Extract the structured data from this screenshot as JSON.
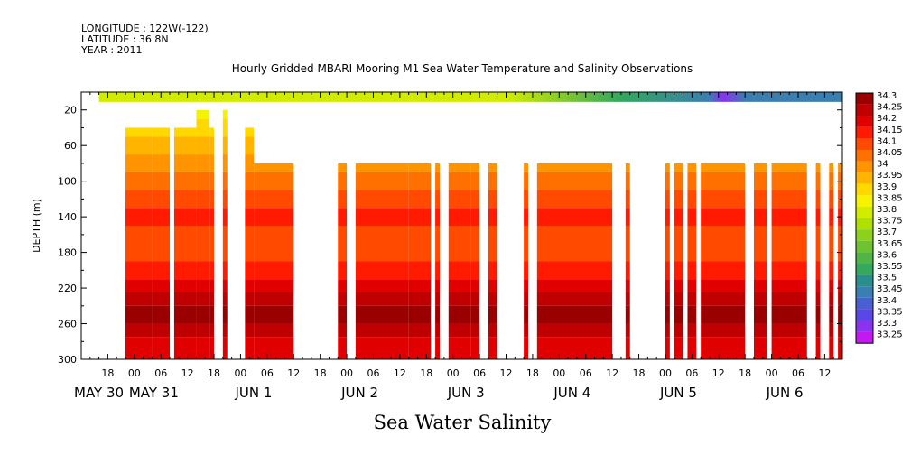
{
  "header": {
    "longitude": "LONGITUDE : 122W(-122)",
    "latitude": "LATITUDE : 36.8N",
    "year": "YEAR : 2011"
  },
  "chart_data": {
    "type": "heatmap",
    "title": "Hourly Gridded MBARI Mooring M1 Sea Water Temperature and Salinity Observations",
    "ylabel": "DEPTH (m)",
    "xlabel_bottom": "Sea Water Salinity",
    "y_range": [
      0,
      300
    ],
    "y_inverted": true,
    "y_ticks": [
      20,
      60,
      100,
      140,
      180,
      220,
      260,
      300
    ],
    "x_range_hours": [
      "2011-05-30 12:00",
      "2011-06-06 16:00"
    ],
    "x_hour_ticks": [
      {
        "t": "2011-05-30 18:00",
        "label": "18"
      },
      {
        "t": "2011-05-31 00:00",
        "label": "00"
      },
      {
        "t": "2011-05-31 06:00",
        "label": "06"
      },
      {
        "t": "2011-05-31 12:00",
        "label": "12"
      },
      {
        "t": "2011-05-31 18:00",
        "label": "18"
      },
      {
        "t": "2011-06-01 00:00",
        "label": "00"
      },
      {
        "t": "2011-06-01 06:00",
        "label": "06"
      },
      {
        "t": "2011-06-01 12:00",
        "label": "12"
      },
      {
        "t": "2011-06-01 18:00",
        "label": "18"
      },
      {
        "t": "2011-06-02 00:00",
        "label": "00"
      },
      {
        "t": "2011-06-02 06:00",
        "label": "06"
      },
      {
        "t": "2011-06-02 12:00",
        "label": "12"
      },
      {
        "t": "2011-06-02 18:00",
        "label": "18"
      },
      {
        "t": "2011-06-03 00:00",
        "label": "00"
      },
      {
        "t": "2011-06-03 06:00",
        "label": "06"
      },
      {
        "t": "2011-06-03 12:00",
        "label": "12"
      },
      {
        "t": "2011-06-03 18:00",
        "label": "18"
      },
      {
        "t": "2011-06-04 00:00",
        "label": "00"
      },
      {
        "t": "2011-06-04 06:00",
        "label": "06"
      },
      {
        "t": "2011-06-04 12:00",
        "label": "12"
      },
      {
        "t": "2011-06-04 18:00",
        "label": "18"
      },
      {
        "t": "2011-06-05 00:00",
        "label": "00"
      },
      {
        "t": "2011-06-05 06:00",
        "label": "06"
      },
      {
        "t": "2011-06-05 12:00",
        "label": "12"
      },
      {
        "t": "2011-06-05 18:00",
        "label": "18"
      },
      {
        "t": "2011-06-06 00:00",
        "label": "00"
      },
      {
        "t": "2011-06-06 06:00",
        "label": "06"
      },
      {
        "t": "2011-06-06 12:00",
        "label": "12"
      }
    ],
    "x_date_labels": [
      {
        "t": "2011-05-30 00:00",
        "label": "MAY 30"
      },
      {
        "t": "2011-05-31 00:00",
        "label": "MAY 31"
      },
      {
        "t": "2011-06-01 00:00",
        "label": "JUN  1"
      },
      {
        "t": "2011-06-02 00:00",
        "label": "JUN  2"
      },
      {
        "t": "2011-06-03 00:00",
        "label": "JUN  3"
      },
      {
        "t": "2011-06-04 00:00",
        "label": "JUN  4"
      },
      {
        "t": "2011-06-05 00:00",
        "label": "JUN  5"
      },
      {
        "t": "2011-06-06 00:00",
        "label": "JUN  6"
      }
    ],
    "colorbar": {
      "levels": [
        "34.3",
        "34.25",
        "34.2",
        "34.15",
        "34.1",
        "34.05",
        "34",
        "33.95",
        "33.9",
        "33.85",
        "33.8",
        "33.75",
        "33.7",
        "33.65",
        "33.6",
        "33.55",
        "33.5",
        "33.45",
        "33.4",
        "33.35",
        "33.3",
        "33.25"
      ],
      "colors": [
        "#9a0000",
        "#c00000",
        "#e00000",
        "#ff1a00",
        "#ff4a00",
        "#ff7000",
        "#ff9400",
        "#ffb400",
        "#ffd800",
        "#f4f400",
        "#d2ec00",
        "#aee000",
        "#8cd21c",
        "#6ec332",
        "#50b446",
        "#34a85c",
        "#2a8f8c",
        "#3a7fb0",
        "#4a60d2",
        "#5a48e6",
        "#8a32ee",
        "#c418f0"
      ]
    },
    "near_surface_levels": {
      "depth": 1,
      "description_level_range": [
        "33.3",
        "33.8"
      ]
    },
    "data_segments": [
      {
        "start": "2011-05-30 22:00",
        "end": "2011-05-31 04:00",
        "top_depth": 40
      },
      {
        "start": "2011-05-31 04:00",
        "end": "2011-05-31 08:00",
        "top_depth": 40
      },
      {
        "start": "2011-05-31 09:00",
        "end": "2011-05-31 14:00",
        "top_depth": 40
      },
      {
        "start": "2011-05-31 14:00",
        "end": "2011-05-31 17:00",
        "top_depth": 20
      },
      {
        "start": "2011-05-31 17:00",
        "end": "2011-05-31 18:00",
        "top_depth": 40
      },
      {
        "start": "2011-05-31 20:00",
        "end": "2011-05-31 21:00",
        "top_depth": 20
      },
      {
        "start": "2011-06-01 01:00",
        "end": "2011-06-01 03:00",
        "top_depth": 40
      },
      {
        "start": "2011-06-01 03:00",
        "end": "2011-06-01 12:00",
        "top_depth": 80
      },
      {
        "start": "2011-06-01 22:00",
        "end": "2011-06-02 00:00",
        "top_depth": 80
      },
      {
        "start": "2011-06-02 02:00",
        "end": "2011-06-02 14:00",
        "top_depth": 80
      },
      {
        "start": "2011-06-02 14:00",
        "end": "2011-06-02 19:00",
        "top_depth": 80
      },
      {
        "start": "2011-06-02 20:00",
        "end": "2011-06-02 21:00",
        "top_depth": 80
      },
      {
        "start": "2011-06-02 23:00",
        "end": "2011-06-03 04:00",
        "top_depth": 80
      },
      {
        "start": "2011-06-03 04:00",
        "end": "2011-06-03 06:00",
        "top_depth": 80
      },
      {
        "start": "2011-06-03 08:00",
        "end": "2011-06-03 10:00",
        "top_depth": 80
      },
      {
        "start": "2011-06-03 16:00",
        "end": "2011-06-03 17:00",
        "top_depth": 80
      },
      {
        "start": "2011-06-03 19:00",
        "end": "2011-06-04 12:00",
        "top_depth": 80
      },
      {
        "start": "2011-06-04 15:00",
        "end": "2011-06-04 16:00",
        "top_depth": 80
      },
      {
        "start": "2011-06-05 00:00",
        "end": "2011-06-05 01:00",
        "top_depth": 80
      },
      {
        "start": "2011-06-05 02:00",
        "end": "2011-06-05 04:00",
        "top_depth": 80
      },
      {
        "start": "2011-06-05 05:00",
        "end": "2011-06-05 07:00",
        "top_depth": 80
      },
      {
        "start": "2011-06-05 08:00",
        "end": "2011-06-05 18:00",
        "top_depth": 80
      },
      {
        "start": "2011-06-05 20:00",
        "end": "2011-06-05 23:00",
        "top_depth": 80
      },
      {
        "start": "2011-06-06 00:00",
        "end": "2011-06-06 08:00",
        "top_depth": 80
      },
      {
        "start": "2011-06-06 10:00",
        "end": "2011-06-06 11:00",
        "top_depth": 80
      },
      {
        "start": "2011-06-06 13:00",
        "end": "2011-06-06 14:00",
        "top_depth": 80
      },
      {
        "start": "2011-06-06 15:00",
        "end": "2011-06-06 16:00",
        "top_depth": 80
      }
    ],
    "depth_profile": [
      {
        "depth": 30,
        "level": "33.85"
      },
      {
        "depth": 50,
        "level": "33.9"
      },
      {
        "depth": 70,
        "level": "33.95"
      },
      {
        "depth": 90,
        "level": "34"
      },
      {
        "depth": 110,
        "level": "34.05"
      },
      {
        "depth": 130,
        "level": "34.1"
      },
      {
        "depth": 150,
        "level": "34.15"
      },
      {
        "depth": 190,
        "level": "34.1"
      },
      {
        "depth": 210,
        "level": "34.15"
      },
      {
        "depth": 225,
        "level": "34.2"
      },
      {
        "depth": 240,
        "level": "34.25"
      },
      {
        "depth": 260,
        "level": "34.3"
      },
      {
        "depth": 275,
        "level": "34.25"
      },
      {
        "depth": 300,
        "level": "34.2"
      }
    ]
  }
}
